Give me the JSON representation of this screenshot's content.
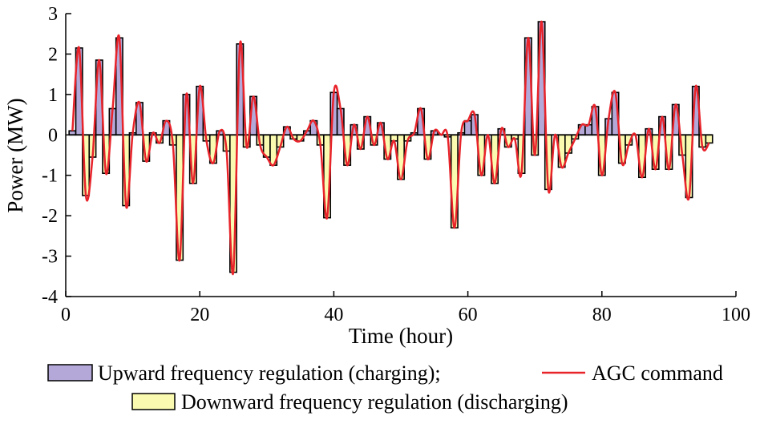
{
  "chart_data": {
    "type": "bar",
    "xlabel": "Time (hour)",
    "ylabel": "Power (MW)",
    "xlim": [
      0,
      100
    ],
    "xticks": [
      0,
      20,
      40,
      60,
      80,
      100
    ],
    "ylim": [
      -4,
      3
    ],
    "yticks": [
      -4,
      -3,
      -2,
      -1,
      0,
      1,
      2,
      3
    ],
    "x": [
      1,
      2,
      3,
      4,
      5,
      6,
      7,
      8,
      9,
      10,
      11,
      12,
      13,
      14,
      15,
      16,
      17,
      18,
      19,
      20,
      21,
      22,
      23,
      24,
      25,
      26,
      27,
      28,
      29,
      30,
      31,
      32,
      33,
      34,
      35,
      36,
      37,
      38,
      39,
      40,
      41,
      42,
      43,
      44,
      45,
      46,
      47,
      48,
      49,
      50,
      51,
      52,
      53,
      54,
      55,
      56,
      57,
      58,
      59,
      60,
      61,
      62,
      63,
      64,
      65,
      66,
      67,
      68,
      69,
      70,
      71,
      72,
      73,
      74,
      75,
      76,
      77,
      78,
      79,
      80,
      81,
      82,
      83,
      84,
      85,
      86,
      87,
      88,
      89,
      90,
      91,
      92,
      93,
      94,
      95,
      96
    ],
    "series": [
      {
        "name": "Upward frequency regulation (charging);",
        "color": "#b4a8d8",
        "values": [
          0.1,
          2.15,
          null,
          null,
          1.85,
          null,
          0.65,
          2.4,
          null,
          0.05,
          0.8,
          null,
          0.05,
          null,
          0.35,
          null,
          null,
          1.0,
          null,
          1.2,
          null,
          null,
          0.1,
          null,
          null,
          2.25,
          null,
          0.95,
          null,
          null,
          null,
          null,
          0.2,
          null,
          null,
          0.1,
          0.35,
          null,
          null,
          1.05,
          0.65,
          null,
          0.25,
          null,
          0.45,
          null,
          0.3,
          null,
          null,
          null,
          null,
          0.05,
          0.65,
          null,
          0.1,
          0,
          null,
          null,
          0.05,
          0.35,
          0.5,
          null,
          0,
          null,
          0.15,
          null,
          null,
          null,
          2.4,
          null,
          2.8,
          null,
          0,
          null,
          null,
          null,
          0.25,
          0.25,
          0.7,
          null,
          0.4,
          1.05,
          null,
          null,
          0,
          null,
          0.15,
          null,
          0.45,
          null,
          0.75,
          null,
          null,
          1.2,
          null,
          null
        ]
      },
      {
        "name": "Downward frequency regulation (discharging)",
        "color": "#fafab0",
        "values": [
          null,
          null,
          -1.5,
          -0.55,
          null,
          -0.95,
          null,
          null,
          -1.75,
          null,
          null,
          -0.65,
          null,
          -0.2,
          null,
          -0.25,
          -3.1,
          null,
          -1.2,
          null,
          -0.15,
          -0.7,
          null,
          -0.4,
          -3.4,
          null,
          -0.3,
          null,
          -0.25,
          -0.55,
          -0.75,
          -0.3,
          null,
          -0.1,
          -0.15,
          null,
          null,
          -0.25,
          -2.05,
          null,
          null,
          -0.75,
          null,
          -0.35,
          null,
          -0.25,
          null,
          -0.6,
          -0.15,
          -1.1,
          -0.15,
          null,
          null,
          -0.6,
          null,
          null,
          -0.05,
          -2.3,
          null,
          null,
          null,
          -1.0,
          null,
          -1.2,
          null,
          -0.3,
          -0.1,
          -0.95,
          null,
          -0.5,
          null,
          -1.35,
          null,
          -0.8,
          -0.45,
          -0.1,
          null,
          null,
          null,
          -1.0,
          null,
          null,
          -0.7,
          -0.25,
          null,
          -1.05,
          null,
          -0.85,
          null,
          -0.85,
          null,
          -0.5,
          -1.55,
          null,
          -0.3,
          -0.2
        ]
      },
      {
        "name": "AGC command",
        "color": "#e8232a",
        "values": [
          0.1,
          2.15,
          -1.5,
          -0.55,
          1.85,
          -0.95,
          0.65,
          2.4,
          -1.75,
          0.05,
          0.8,
          -0.65,
          0.05,
          -0.2,
          0.35,
          -0.25,
          -3.1,
          1.0,
          -1.2,
          1.2,
          -0.15,
          -0.7,
          0.1,
          -0.4,
          -3.4,
          2.25,
          -0.3,
          0.95,
          -0.25,
          -0.55,
          -0.75,
          -0.3,
          0.2,
          -0.1,
          -0.15,
          0.1,
          0.35,
          -0.25,
          -2.05,
          1.05,
          0.65,
          -0.75,
          0.25,
          -0.35,
          0.45,
          -0.25,
          0.3,
          -0.6,
          -0.15,
          -1.1,
          -0.15,
          0.05,
          0.65,
          -0.6,
          0.1,
          0,
          -0.05,
          -2.3,
          0.05,
          0.35,
          0.5,
          -1.0,
          0,
          -1.2,
          0.15,
          -0.3,
          -0.1,
          -0.95,
          2.4,
          -0.5,
          2.8,
          -1.35,
          0,
          -0.8,
          -0.45,
          -0.1,
          0.25,
          0.25,
          0.7,
          -1.0,
          0.4,
          1.05,
          -0.7,
          -0.25,
          0,
          -1.05,
          0.15,
          -0.85,
          0.45,
          -0.85,
          0.75,
          -0.5,
          -1.55,
          1.2,
          -0.3,
          -0.2
        ]
      }
    ]
  }
}
